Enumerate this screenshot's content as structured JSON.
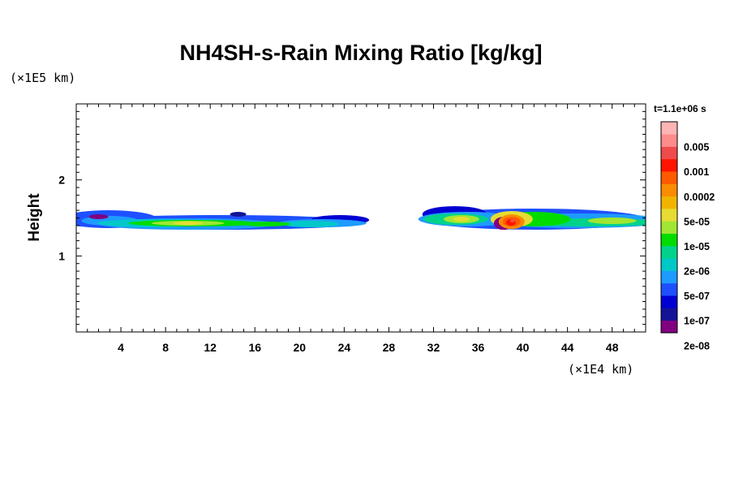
{
  "chart_data": {
    "type": "heatmap",
    "title": "NH4SH-s-Rain Mixing Ratio [kg/kg]",
    "ylabel": "Height",
    "xlabel": "",
    "x_scale_label": "(×1E4 km)",
    "y_scale_label": "(×1E5 km)",
    "time_label": "t=1.1e+06 s",
    "xlim": [
      0,
      51
    ],
    "ylim": [
      0,
      3
    ],
    "x_ticks": [
      "4",
      "8",
      "12",
      "16",
      "20",
      "24",
      "28",
      "32",
      "36",
      "40",
      "44",
      "48"
    ],
    "x_tick_values": [
      4,
      8,
      12,
      16,
      20,
      24,
      28,
      32,
      36,
      40,
      44,
      48
    ],
    "y_ticks": [
      "1",
      "2"
    ],
    "y_tick_values": [
      1,
      2
    ],
    "colorbar": {
      "labels": [
        "0.005",
        "0.001",
        "0.0002",
        "5e-05",
        "1e-05",
        "2e-06",
        "5e-07",
        "1e-07",
        "2e-08"
      ],
      "colors": [
        "#800080",
        "#141496",
        "#0000d2",
        "#1e50ff",
        "#1e9bff",
        "#00c8c8",
        "#00d28c",
        "#00dc00",
        "#a0e632",
        "#e6dc32",
        "#f0b400",
        "#fa8c00",
        "#ff5a00",
        "#ff1400",
        "#f04b4b",
        "#ff8c8c",
        "#ffb4b4"
      ]
    },
    "rain_band": {
      "height_center": 1.42,
      "segments": [
        {
          "x_start": 0,
          "x_end": 25.8,
          "peak_category": "5e-05"
        },
        {
          "x_start": 31,
          "x_end": 51,
          "peak_category": "0.001"
        }
      ],
      "maximum_location": {
        "x": 39,
        "height": 1.45
      }
    }
  }
}
